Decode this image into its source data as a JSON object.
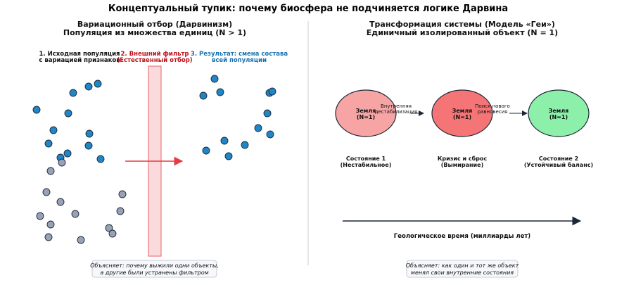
{
  "title": "Концептуальный тупик: почему биосфера не подчиняется логике Дарвина",
  "left": {
    "heading": "Вариационный отбор (Дарвинизм)",
    "subheading": "Популяция из множества единиц (N > 1)",
    "step1": [
      "1. Исходная популяция",
      "с вариацией признаков"
    ],
    "step2": [
      "2. Внешний фильтр",
      "(Естественный отбор)"
    ],
    "step3": [
      "3. Результат: смена состава",
      "всей популяции"
    ],
    "note": [
      "Объясняет: почему выжили одни объекты,",
      "а другие были устранены фильтром"
    ]
  },
  "right": {
    "heading": "Трансформация системы (Модель «Геи»)",
    "subheading": "Единичный изолированный объект (N = 1)",
    "nodes": [
      {
        "label": [
          "Земля",
          "(N=1)"
        ],
        "state": [
          "Состояние 1",
          "(Нестабильное)"
        ],
        "color": "#f7a4a4"
      },
      {
        "label": [
          "Земля",
          "(N=1)"
        ],
        "state": [
          "Кризис и сброс",
          "(Вымирание)"
        ],
        "color": "#f57577"
      },
      {
        "label": [
          "Земля",
          "(N=1)"
        ],
        "state": [
          "Состояние 2",
          "(Устойчивый баланс)"
        ],
        "color": "#8cf0aa"
      }
    ],
    "arrow_labels": [
      [
        "Внутренняя",
        "дестабилизация"
      ],
      [
        "Поиск нового",
        "равновесия"
      ]
    ],
    "time_label": "Геологическое время (миллиарды лет)",
    "note": [
      "Объясняет: как один и тот же объект",
      "менял свои внутренние состояния"
    ]
  },
  "colors": {
    "fit": "#1f86c8",
    "unfit": "#98a2b6",
    "filter_fill": "#fbdadb",
    "filter_stroke": "#e8626a",
    "step2": "#c0121c",
    "step3": "#1673b0",
    "arrow": "#e23e44"
  },
  "population_fit": 16,
  "population_unfit": 13,
  "result_fit": 16
}
